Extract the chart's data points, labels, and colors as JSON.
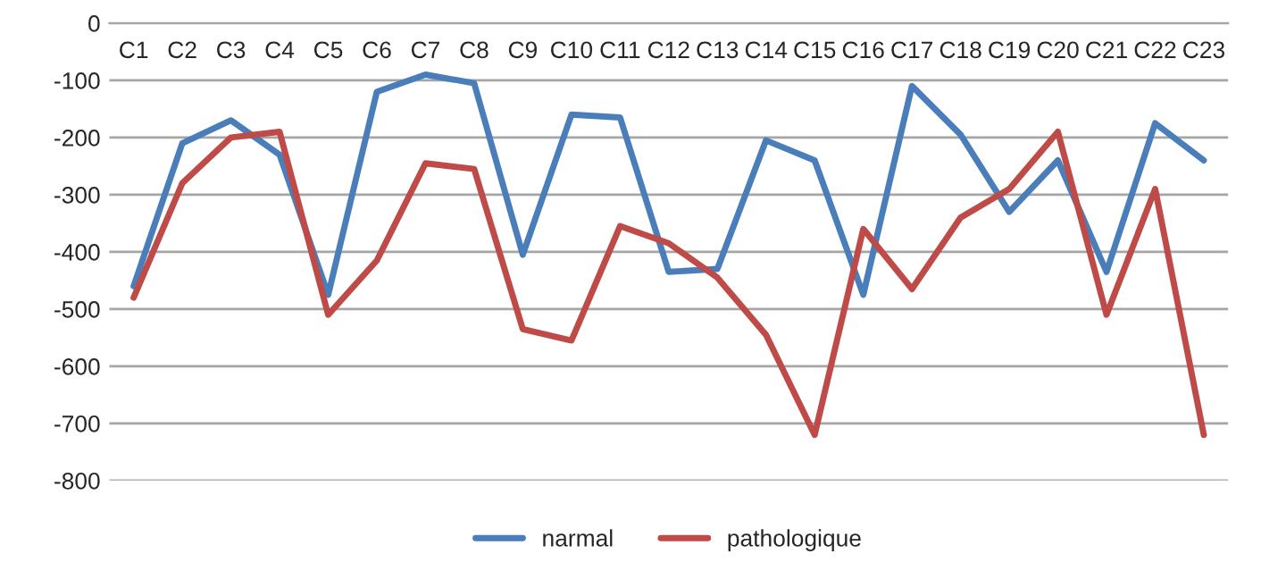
{
  "chart_data": {
    "type": "line",
    "categories": [
      "C1",
      "C2",
      "C3",
      "C4",
      "C5",
      "C6",
      "C7",
      "C8",
      "C9",
      "C10",
      "C11",
      "C12",
      "C13",
      "C14",
      "C15",
      "C16",
      "C17",
      "C18",
      "C19",
      "C20",
      "C21",
      "C22",
      "C23"
    ],
    "series": [
      {
        "name": "narmal",
        "color": "#4a7ebb",
        "values": [
          -460,
          -210,
          -170,
          -230,
          -475,
          -120,
          -90,
          -105,
          -405,
          -160,
          -165,
          -435,
          -430,
          -205,
          -240,
          -475,
          -110,
          -195,
          -330,
          -240,
          -435,
          -175,
          -240
        ]
      },
      {
        "name": "pathologique",
        "color": "#be4b48",
        "values": [
          -480,
          -280,
          -200,
          -190,
          -510,
          -415,
          -245,
          -255,
          -535,
          -555,
          -355,
          -385,
          -445,
          -545,
          -720,
          -360,
          -465,
          -340,
          -290,
          -190,
          -510,
          -290,
          -720
        ]
      }
    ],
    "ylim": [
      -800,
      0
    ],
    "yticks": [
      -800,
      -700,
      -600,
      -500,
      -400,
      -300,
      -200,
      -100,
      0
    ],
    "grid": "y",
    "legend": "bottom",
    "marker": "none",
    "line_style": "solid"
  }
}
